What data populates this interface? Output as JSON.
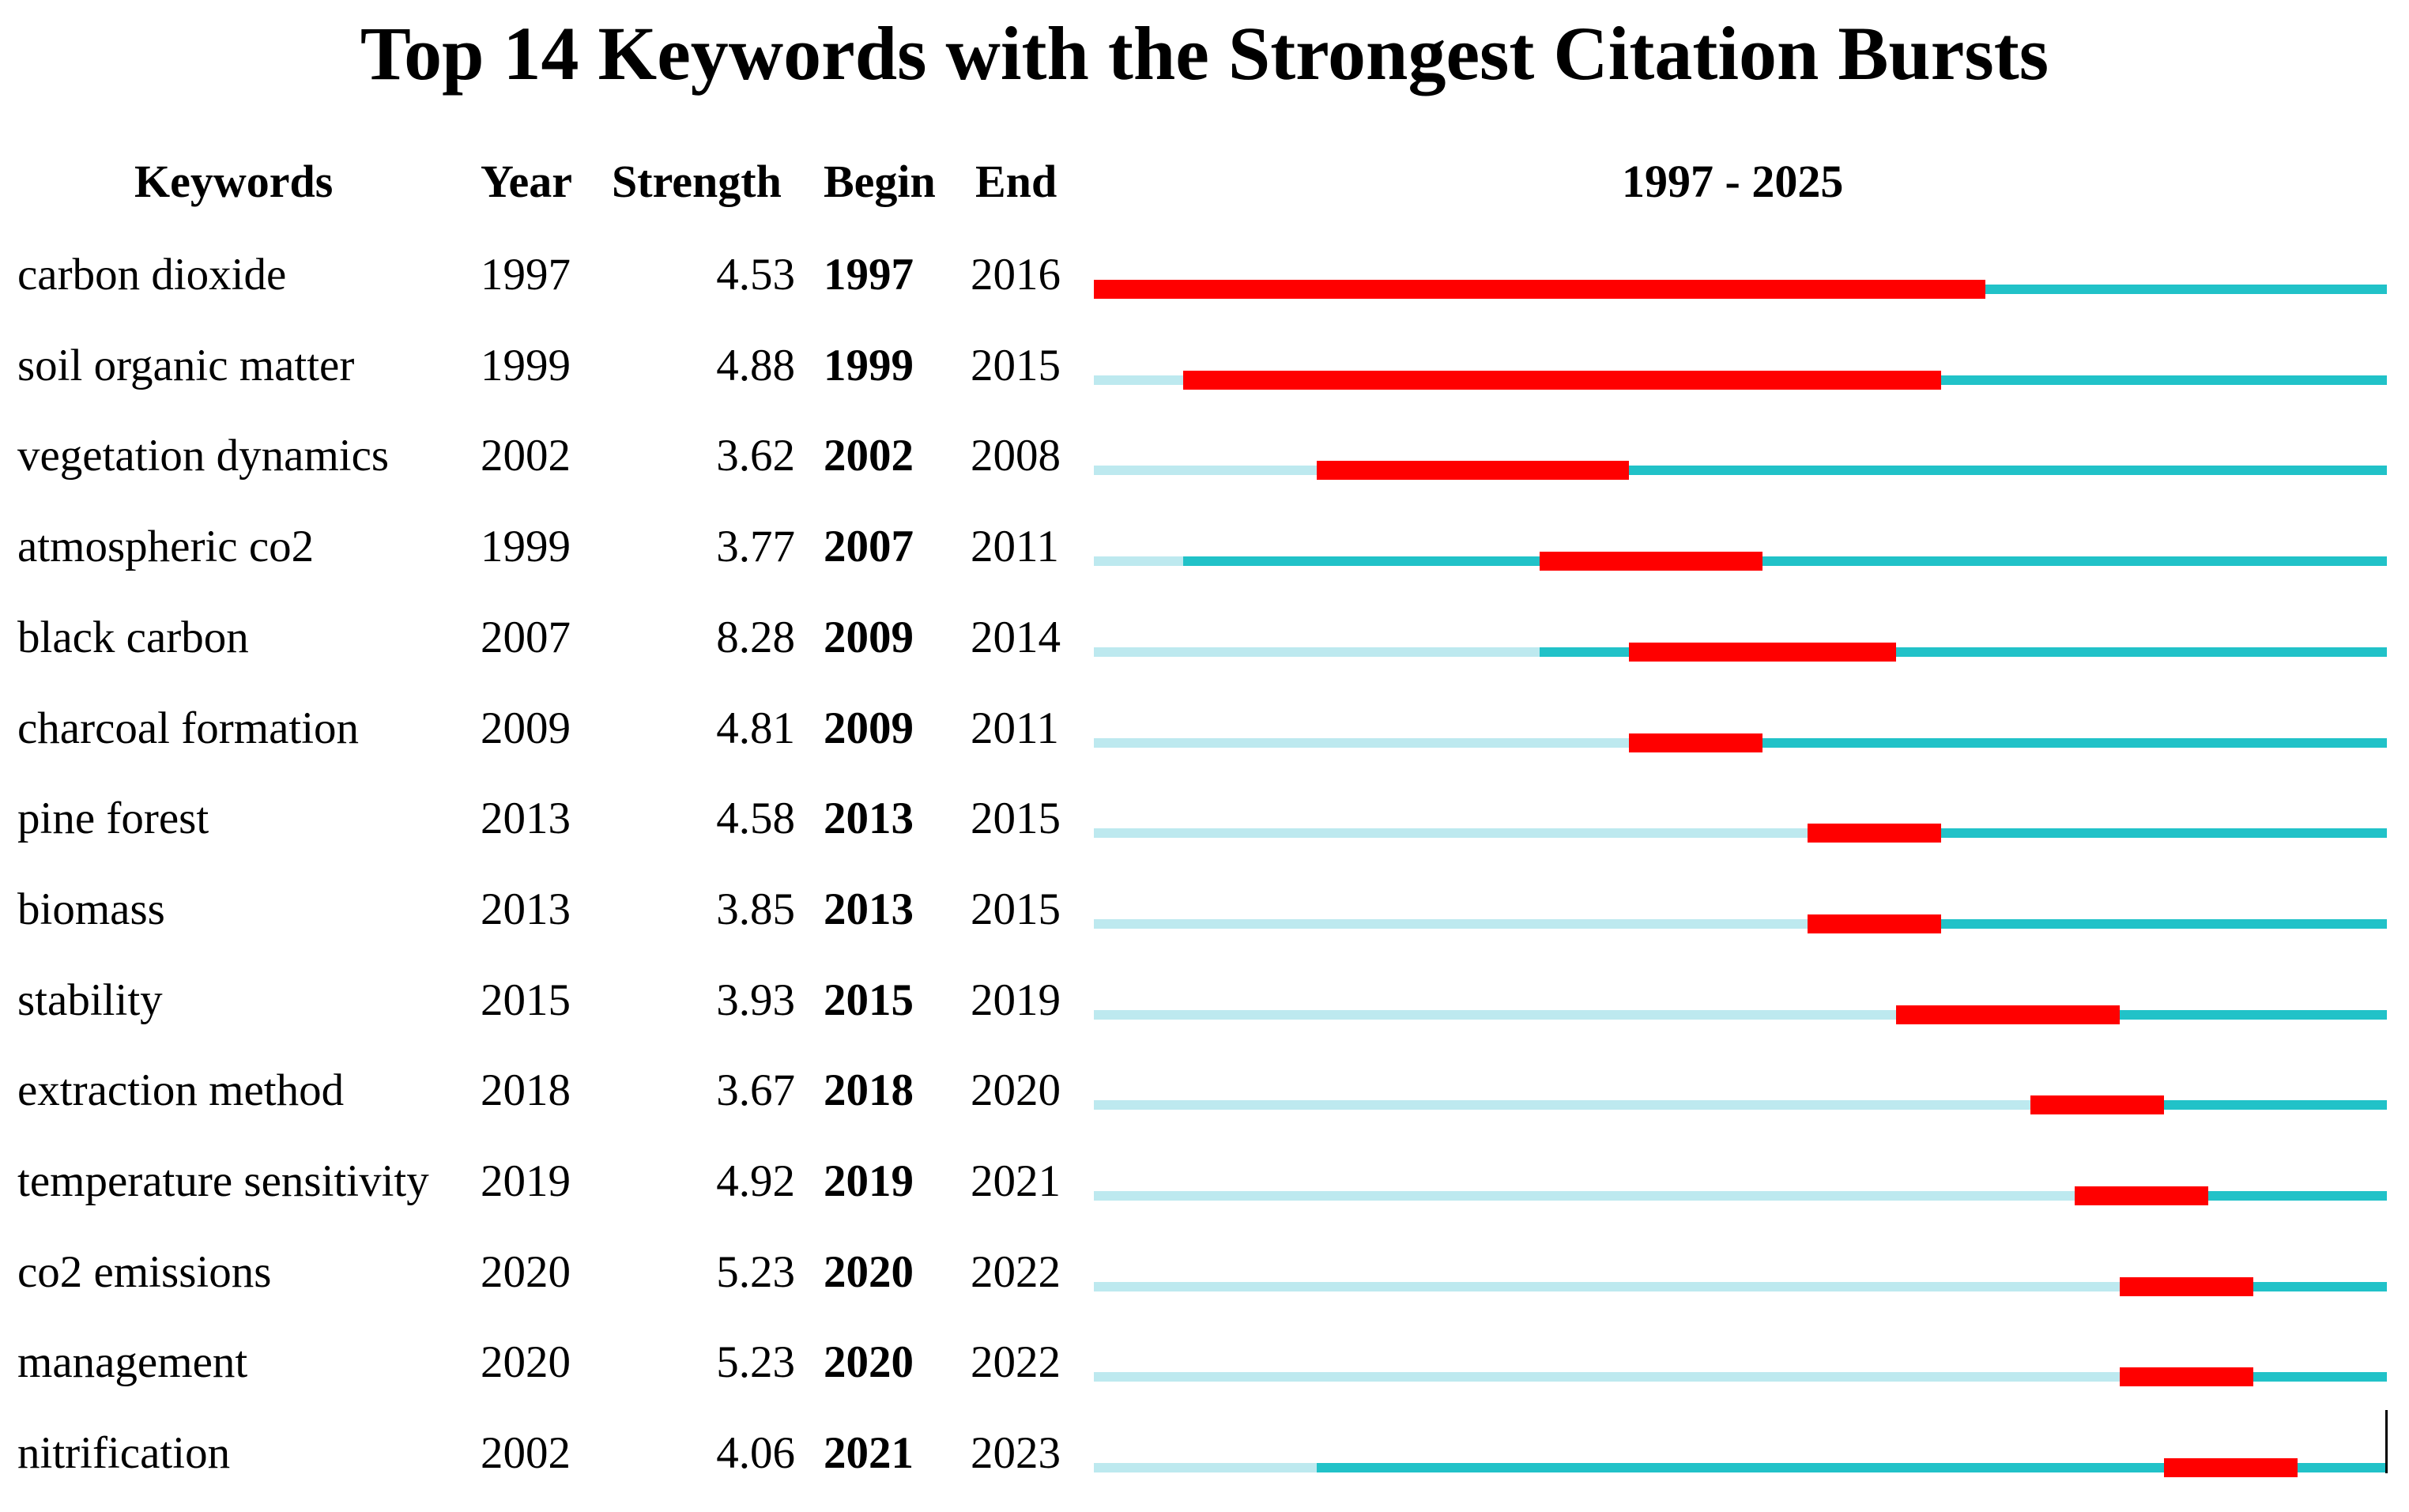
{
  "chart_data": {
    "type": "table",
    "title": "Top 14 Keywords with the Strongest Citation Bursts",
    "columns": [
      "Keywords",
      "Year",
      "Strength",
      "Begin",
      "End"
    ],
    "range_label": "1997 - 2025",
    "range": [
      1997,
      2025
    ],
    "colors": {
      "before_first_appearance": "#bde9ef",
      "after_first_appearance": "#21c2c8",
      "burst": "#ff0000"
    },
    "rows": [
      {
        "keyword": "carbon dioxide",
        "year": 1997,
        "strength": "4.53",
        "begin": 1997,
        "end": 2016
      },
      {
        "keyword": "soil organic matter",
        "year": 1999,
        "strength": "4.88",
        "begin": 1999,
        "end": 2015
      },
      {
        "keyword": "vegetation dynamics",
        "year": 2002,
        "strength": "3.62",
        "begin": 2002,
        "end": 2008
      },
      {
        "keyword": "atmospheric co2",
        "year": 1999,
        "strength": "3.77",
        "begin": 2007,
        "end": 2011
      },
      {
        "keyword": "black carbon",
        "year": 2007,
        "strength": "8.28",
        "begin": 2009,
        "end": 2014
      },
      {
        "keyword": "charcoal formation",
        "year": 2009,
        "strength": "4.81",
        "begin": 2009,
        "end": 2011
      },
      {
        "keyword": "pine forest",
        "year": 2013,
        "strength": "4.58",
        "begin": 2013,
        "end": 2015
      },
      {
        "keyword": "biomass",
        "year": 2013,
        "strength": "3.85",
        "begin": 2013,
        "end": 2015
      },
      {
        "keyword": "stability",
        "year": 2015,
        "strength": "3.93",
        "begin": 2015,
        "end": 2019
      },
      {
        "keyword": "extraction method",
        "year": 2018,
        "strength": "3.67",
        "begin": 2018,
        "end": 2020
      },
      {
        "keyword": "temperature sensitivity",
        "year": 2019,
        "strength": "4.92",
        "begin": 2019,
        "end": 2021
      },
      {
        "keyword": "co2 emissions",
        "year": 2020,
        "strength": "5.23",
        "begin": 2020,
        "end": 2022
      },
      {
        "keyword": "management",
        "year": 2020,
        "strength": "5.23",
        "begin": 2020,
        "end": 2022
      },
      {
        "keyword": "nitrification",
        "year": 2002,
        "strength": "4.06",
        "begin": 2021,
        "end": 2023
      }
    ]
  }
}
